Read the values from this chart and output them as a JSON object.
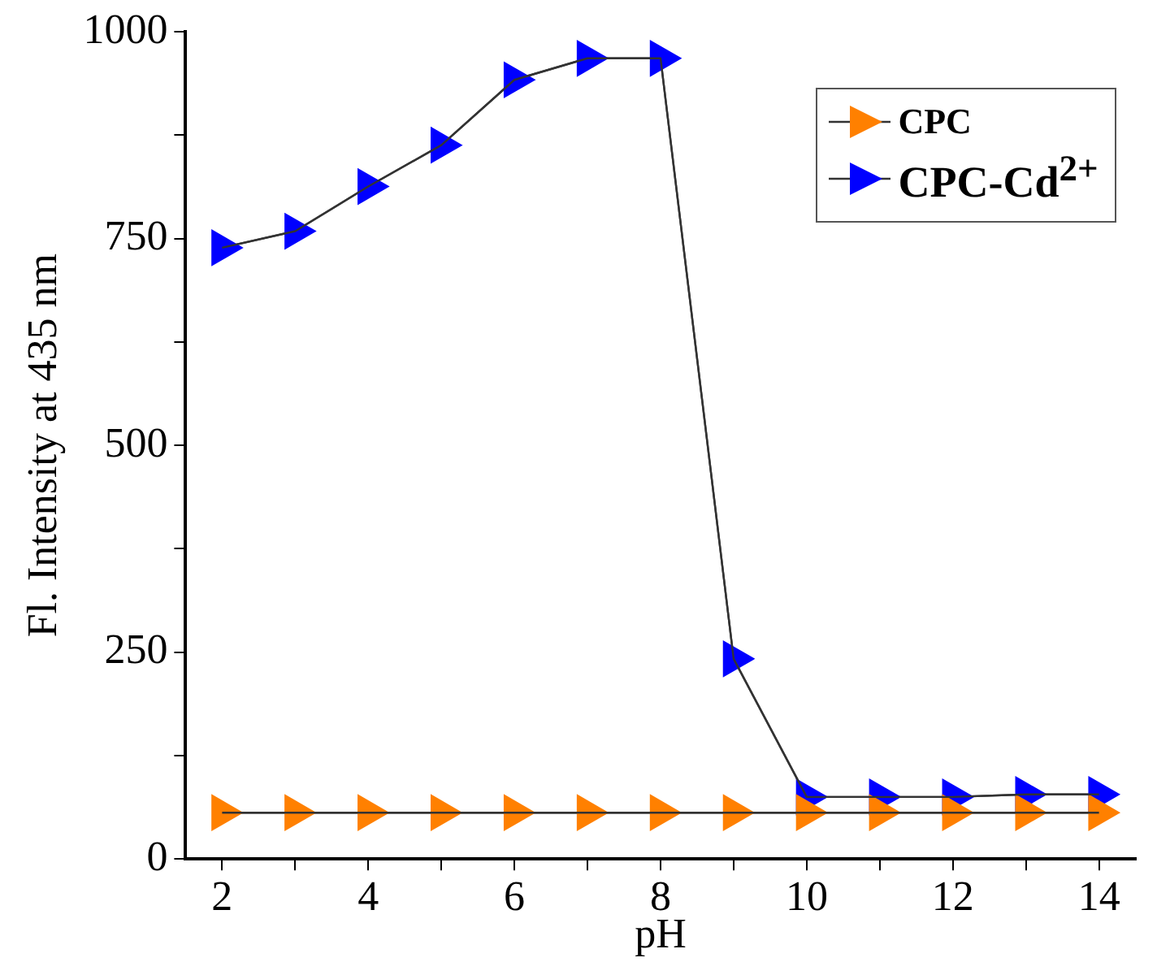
{
  "chart_data": {
    "type": "line",
    "xlabel": "pH",
    "ylabel": "Fl. Intensity at 435 nm",
    "x": [
      2,
      3,
      4,
      5,
      6,
      7,
      8,
      9,
      10,
      11,
      12,
      13,
      14
    ],
    "series": [
      {
        "name": "CPC",
        "color": "#ff8000",
        "values": [
          56,
          56,
          56,
          56,
          56,
          56,
          56,
          56,
          56,
          56,
          56,
          56,
          56
        ]
      },
      {
        "name": "CPC-Cd$^{2+}$",
        "color": "#0000ff",
        "values": [
          739,
          759,
          813,
          863,
          942,
          968,
          968,
          242,
          75,
          75,
          75,
          78,
          78
        ]
      }
    ],
    "xlim": [
      1.5,
      14.5
    ],
    "xticks": [
      2,
      {
        "value": 3,
        "label": null
      },
      4,
      {
        "value": 5,
        "label": null
      },
      6,
      {
        "value": 7,
        "label": null
      },
      8,
      {
        "value": 9,
        "label": null
      },
      10,
      {
        "value": 11,
        "label": null
      },
      12,
      {
        "value": 13,
        "label": null
      },
      14
    ],
    "ylim": [
      0,
      1000
    ],
    "yticks": [
      0,
      {
        "value": 125,
        "label": null
      },
      250,
      {
        "value": 375,
        "label": null
      },
      500,
      {
        "value": 625,
        "label": null
      },
      750,
      {
        "value": 875,
        "label": null
      },
      1000
    ],
    "grid": false,
    "legend": "top right",
    "marker": "triangle",
    "line_style": "solid"
  }
}
